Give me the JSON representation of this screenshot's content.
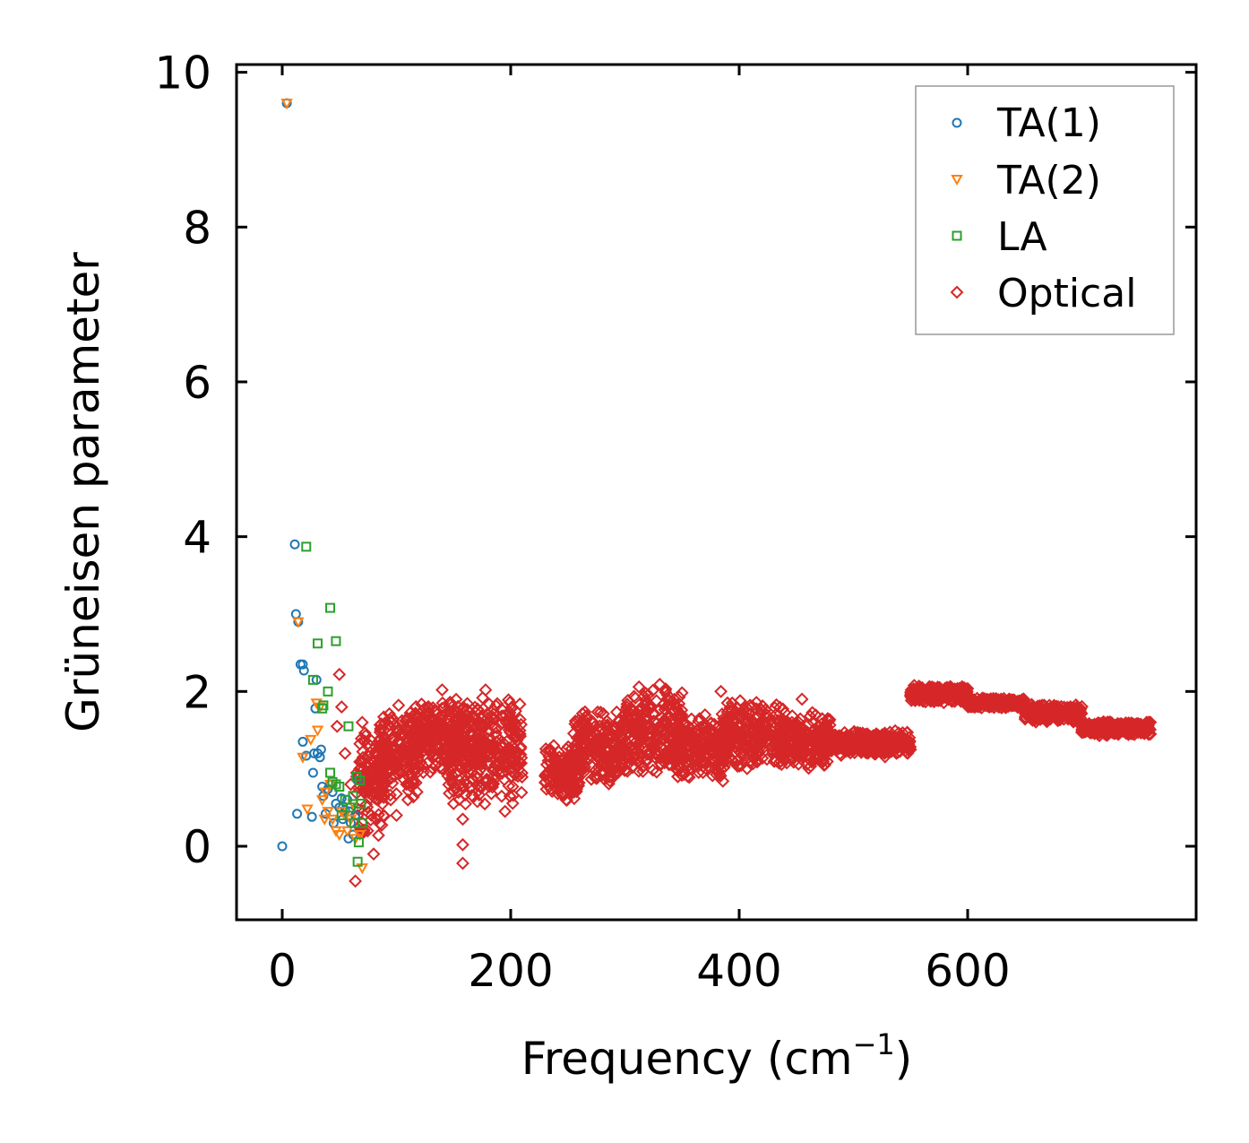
{
  "chart_data": {
    "type": "scatter",
    "title": "",
    "xlabel": "Frequency (cm",
    "xlabel_sup": "−1",
    "xlabel_end": ")",
    "ylabel": "Grüneisen parameter",
    "xlim": [
      -40,
      800
    ],
    "ylim": [
      -0.95,
      10.1
    ],
    "xticks": [
      0,
      200,
      400,
      600
    ],
    "yticks": [
      0,
      2,
      4,
      6,
      8,
      10
    ],
    "xtick_labels": [
      "0",
      "200",
      "400",
      "600"
    ],
    "ytick_labels": [
      "0",
      "2",
      "4",
      "6",
      "8",
      "10"
    ],
    "legend_position": "top-right",
    "series": [
      {
        "name": "TA(1)",
        "marker": "circle",
        "color": "#1f77b4",
        "points": [
          [
            0,
            0
          ],
          [
            4,
            9.6
          ],
          [
            11,
            3.9
          ],
          [
            12,
            3.0
          ],
          [
            14,
            2.9
          ],
          [
            16,
            2.35
          ],
          [
            18,
            2.35
          ],
          [
            19,
            2.27
          ],
          [
            21,
            1.17
          ],
          [
            27,
            0.95
          ],
          [
            28,
            1.2
          ],
          [
            29,
            1.78
          ],
          [
            30,
            2.15
          ],
          [
            31,
            1.2
          ],
          [
            33,
            1.15
          ],
          [
            35,
            0.77
          ],
          [
            36,
            0.65
          ],
          [
            38,
            0.42
          ],
          [
            40,
            0.74
          ],
          [
            42,
            0.8
          ],
          [
            44,
            0.7
          ],
          [
            47,
            0.55
          ],
          [
            50,
            0.5
          ],
          [
            53,
            0.35
          ],
          [
            55,
            0.47
          ],
          [
            57,
            0.6
          ],
          [
            58,
            0.1
          ],
          [
            60,
            0.3
          ],
          [
            62,
            0.15
          ],
          [
            64,
            0.4
          ],
          [
            66,
            0.85
          ],
          [
            13,
            0.42
          ],
          [
            26,
            0.38
          ],
          [
            18,
            1.35
          ],
          [
            34,
            1.25
          ],
          [
            52,
            0.62
          ],
          [
            45,
            0.3
          ],
          [
            59,
            0.45
          ]
        ]
      },
      {
        "name": "TA(2)",
        "marker": "triangle-down",
        "color": "#ff7f0e",
        "points": [
          [
            4,
            9.6
          ],
          [
            14,
            2.9
          ],
          [
            18,
            1.15
          ],
          [
            22,
            0.48
          ],
          [
            25,
            1.38
          ],
          [
            30,
            1.85
          ],
          [
            31,
            1.5
          ],
          [
            33,
            1.8
          ],
          [
            35,
            0.6
          ],
          [
            37,
            0.35
          ],
          [
            40,
            0.45
          ],
          [
            44,
            0.35
          ],
          [
            47,
            0.2
          ],
          [
            52,
            0.45
          ],
          [
            55,
            0.4
          ],
          [
            60,
            0.35
          ],
          [
            64,
            0.1
          ],
          [
            68,
            0.15
          ],
          [
            70,
            -0.28
          ],
          [
            42,
            0.8
          ],
          [
            38,
            0.7
          ],
          [
            50,
            0.15
          ],
          [
            57,
            0.2
          ],
          [
            62,
            0.55
          ]
        ]
      },
      {
        "name": "LA",
        "marker": "square",
        "color": "#2ca02c",
        "points": [
          [
            21,
            3.87
          ],
          [
            42,
            3.08
          ],
          [
            31,
            2.62
          ],
          [
            47,
            2.65
          ],
          [
            27,
            2.15
          ],
          [
            40,
            2.0
          ],
          [
            35,
            1.78
          ],
          [
            36,
            1.82
          ],
          [
            58,
            1.55
          ],
          [
            42,
            0.95
          ],
          [
            44,
            0.83
          ],
          [
            47,
            0.8
          ],
          [
            50,
            0.77
          ],
          [
            55,
            0.6
          ],
          [
            60,
            0.5
          ],
          [
            63,
            0.3
          ],
          [
            65,
            0.9
          ],
          [
            68,
            0.85
          ],
          [
            70,
            0.3
          ],
          [
            66,
            -0.2
          ],
          [
            69,
            0.55
          ],
          [
            52,
            0.4
          ],
          [
            62,
            0.65
          ],
          [
            67,
            0.05
          ]
        ]
      },
      {
        "name": "Optical",
        "marker": "diamond",
        "color": "#d62728",
        "points": [
          [
            50,
            2.22
          ],
          [
            48,
            1.55
          ],
          [
            52,
            1.8
          ],
          [
            55,
            1.2
          ],
          [
            60,
            0.8
          ],
          [
            64,
            -0.45
          ],
          [
            66,
            0.4
          ],
          [
            68,
            0.2
          ],
          [
            70,
            1.6
          ],
          [
            72,
            0.9
          ],
          [
            75,
            0.7
          ],
          [
            78,
            0.4
          ],
          [
            80,
            -0.1
          ],
          [
            85,
            1.3
          ],
          [
            90,
            0.9
          ],
          [
            95,
            0.6
          ],
          [
            100,
            0.4
          ],
          [
            110,
            0.6
          ],
          [
            140,
            2.02
          ],
          [
            150,
            0.55
          ],
          [
            158,
            0.35
          ],
          [
            158,
            0.02
          ],
          [
            158,
            -0.22
          ],
          [
            178,
            2.02
          ],
          [
            195,
            0.45
          ],
          [
            384,
            2.0
          ],
          [
            455,
            1.9
          ],
          [
            550,
            1.25
          ],
          [
            760,
            1.45
          ]
        ],
        "clouds": [
          {
            "x0": 65,
            "x1": 90,
            "ymin": 0.0,
            "ymax": 1.75
          },
          {
            "x0": 85,
            "x1": 120,
            "ymin": 0.6,
            "ymax": 1.85
          },
          {
            "x0": 115,
            "x1": 160,
            "ymin": 0.9,
            "ymax": 1.95
          },
          {
            "x0": 145,
            "x1": 175,
            "ymin": 0.5,
            "ymax": 1.95
          },
          {
            "x0": 170,
            "x1": 210,
            "ymin": 0.5,
            "ymax": 1.95
          },
          {
            "x0": 230,
            "x1": 260,
            "ymin": 0.55,
            "ymax": 1.35
          },
          {
            "x0": 255,
            "x1": 300,
            "ymin": 0.75,
            "ymax": 1.8
          },
          {
            "x0": 300,
            "x1": 350,
            "ymin": 0.85,
            "ymax": 2.15
          },
          {
            "x0": 345,
            "x1": 390,
            "ymin": 0.8,
            "ymax": 1.75
          },
          {
            "x0": 385,
            "x1": 440,
            "ymin": 0.95,
            "ymax": 1.9
          },
          {
            "x0": 435,
            "x1": 480,
            "ymin": 1.0,
            "ymax": 1.75
          },
          {
            "x0": 480,
            "x1": 550,
            "ymin": 1.15,
            "ymax": 1.5
          },
          {
            "x0": 550,
            "x1": 600,
            "ymin": 1.85,
            "ymax": 2.08
          },
          {
            "x0": 600,
            "x1": 650,
            "ymin": 1.78,
            "ymax": 1.92
          },
          {
            "x0": 650,
            "x1": 700,
            "ymin": 1.58,
            "ymax": 1.85
          },
          {
            "x0": 700,
            "x1": 760,
            "ymin": 1.42,
            "ymax": 1.62
          }
        ]
      }
    ]
  }
}
